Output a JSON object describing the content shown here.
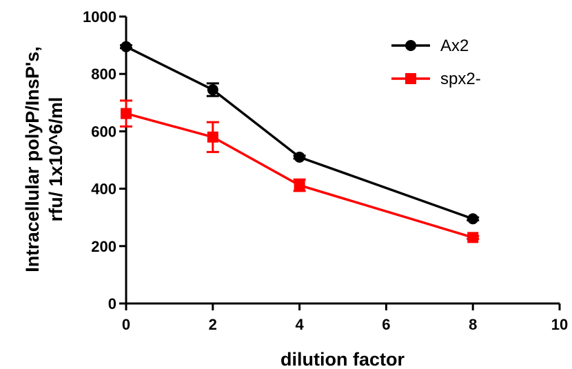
{
  "chart_data": {
    "type": "line",
    "xlabel": "dilution factor",
    "ylabel_line1": "Intracellular polyP/InsP's,",
    "ylabel_line2": "rfu/ 1x10^6/ml",
    "xlim": [
      0,
      10
    ],
    "ylim": [
      0,
      1000
    ],
    "xticks": [
      0,
      2,
      4,
      6,
      8,
      10
    ],
    "yticks": [
      0,
      200,
      400,
      600,
      800,
      1000
    ],
    "grid": false,
    "legend_position": "top-right",
    "series": [
      {
        "name": "Ax2",
        "color": "#000000",
        "marker": "circle",
        "x": [
          0,
          2,
          4,
          8
        ],
        "y": [
          895,
          745,
          510,
          295
        ],
        "error": [
          5,
          22,
          5,
          5
        ]
      },
      {
        "name": "spx2-",
        "color": "#ff0000",
        "marker": "square",
        "x": [
          0,
          2,
          4,
          8
        ],
        "y": [
          662,
          580,
          412,
          230
        ],
        "error": [
          45,
          52,
          20,
          5
        ]
      }
    ]
  }
}
